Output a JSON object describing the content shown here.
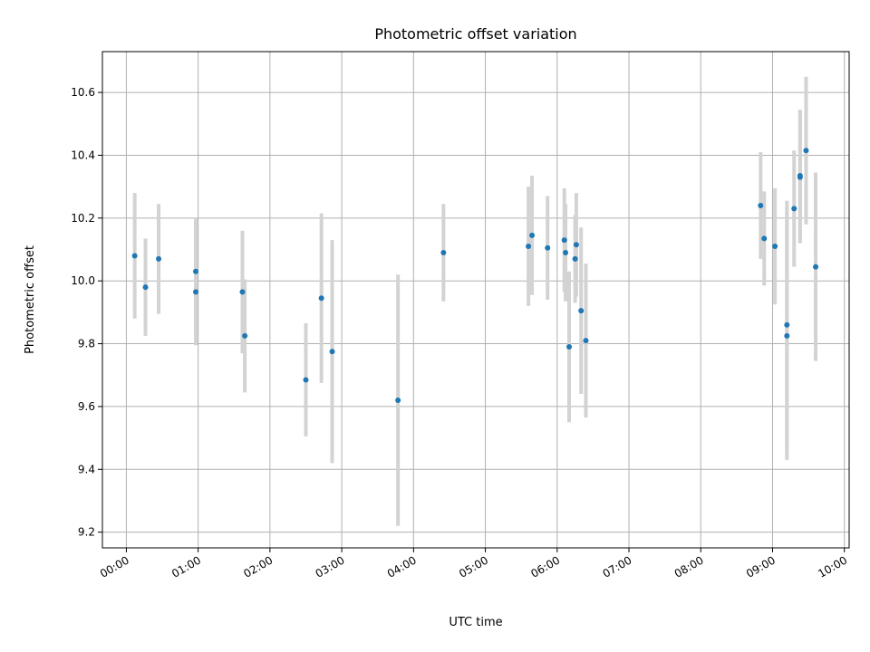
{
  "chart_data": {
    "type": "scatter",
    "title": "Photometric offset variation",
    "xlabel": "UTC time",
    "ylabel": "Photometric offset",
    "xlim": [
      "-00:20",
      "10:04"
    ],
    "ylim": [
      9.15,
      10.73
    ],
    "x_ticks": [
      "00:00",
      "01:00",
      "02:00",
      "03:00",
      "04:00",
      "05:00",
      "06:00",
      "07:00",
      "08:00",
      "09:00",
      "10:00"
    ],
    "y_ticks": [
      9.2,
      9.4,
      9.6,
      9.8,
      10.0,
      10.2,
      10.4,
      10.6
    ],
    "y_tick_labels": [
      "9.2",
      "9.4",
      "9.6",
      "9.8",
      "10.0",
      "10.2",
      "10.4",
      "10.6"
    ],
    "grid": true,
    "marker_color": "#1f77b4",
    "errorbar_color": "#d3d3d3",
    "points": [
      {
        "time": "00:07",
        "y": 10.08,
        "err": 0.2
      },
      {
        "time": "00:16",
        "y": 9.98,
        "err": 0.155
      },
      {
        "time": "00:27",
        "y": 10.07,
        "err": 0.175
      },
      {
        "time": "00:58",
        "y": 10.03,
        "err": 0.17
      },
      {
        "time": "00:58",
        "y": 9.965,
        "err": 0.17
      },
      {
        "time": "01:37",
        "y": 9.965,
        "err": 0.195
      },
      {
        "time": "01:39",
        "y": 9.825,
        "err": 0.18
      },
      {
        "time": "02:30",
        "y": 9.685,
        "err": 0.18
      },
      {
        "time": "02:43",
        "y": 9.945,
        "err": 0.27
      },
      {
        "time": "02:52",
        "y": 9.775,
        "err": 0.355
      },
      {
        "time": "03:47",
        "y": 9.62,
        "err": 0.4
      },
      {
        "time": "04:25",
        "y": 10.09,
        "err": 0.155
      },
      {
        "time": "05:36",
        "y": 10.11,
        "err": 0.19
      },
      {
        "time": "05:39",
        "y": 10.145,
        "err": 0.19
      },
      {
        "time": "05:52",
        "y": 10.105,
        "err": 0.165
      },
      {
        "time": "06:06",
        "y": 10.13,
        "err": 0.165
      },
      {
        "time": "06:07",
        "y": 10.09,
        "err": 0.155
      },
      {
        "time": "06:10",
        "y": 9.79,
        "err": 0.24
      },
      {
        "time": "06:15",
        "y": 10.07,
        "err": 0.14
      },
      {
        "time": "06:16",
        "y": 10.115,
        "err": 0.165
      },
      {
        "time": "06:20",
        "y": 9.905,
        "err": 0.265
      },
      {
        "time": "06:24",
        "y": 9.81,
        "err": 0.245
      },
      {
        "time": "08:50",
        "y": 10.24,
        "err": 0.17
      },
      {
        "time": "08:53",
        "y": 10.135,
        "err": 0.15
      },
      {
        "time": "09:02",
        "y": 10.11,
        "err": 0.185
      },
      {
        "time": "09:12",
        "y": 9.86,
        "err": 0.395
      },
      {
        "time": "09:12",
        "y": 9.825,
        "err": 0.395
      },
      {
        "time": "09:18",
        "y": 10.23,
        "err": 0.185
      },
      {
        "time": "09:23",
        "y": 10.335,
        "err": 0.21
      },
      {
        "time": "09:23",
        "y": 10.33,
        "err": 0.21
      },
      {
        "time": "09:28",
        "y": 10.415,
        "err": 0.235
      },
      {
        "time": "09:36",
        "y": 10.045,
        "err": 0.3
      }
    ]
  }
}
